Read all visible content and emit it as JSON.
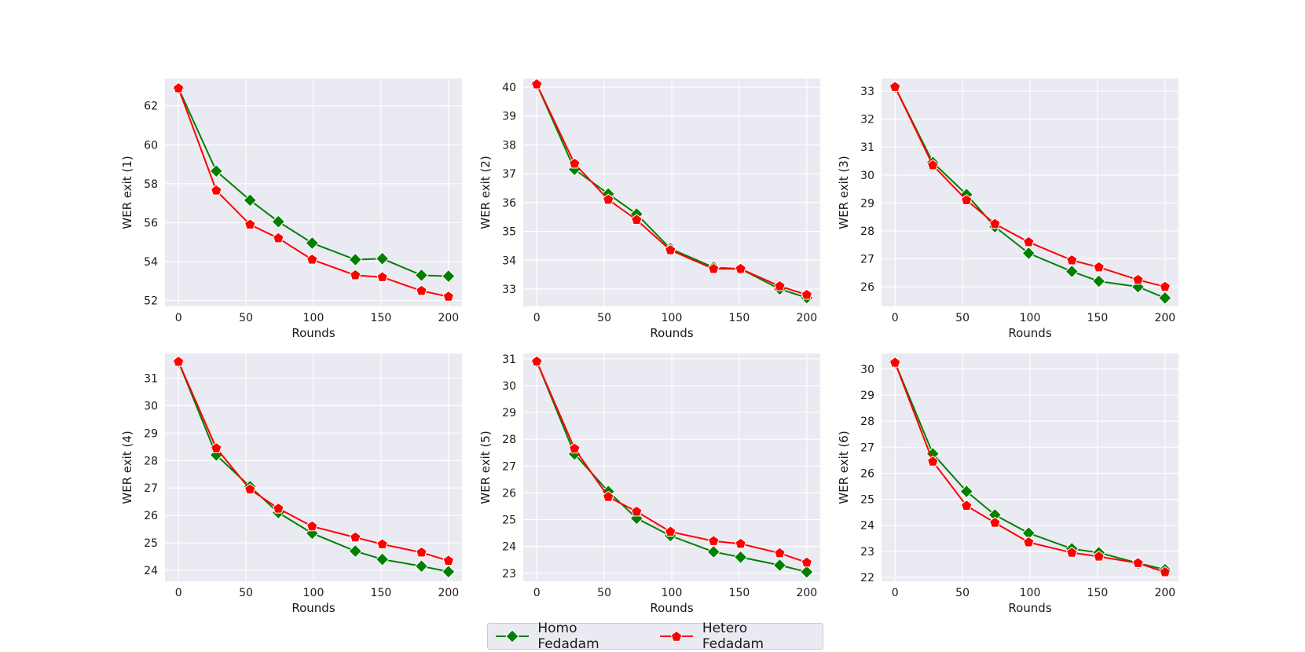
{
  "chart_data": [
    {
      "type": "line",
      "xlabel": "Rounds",
      "ylabel": "WER exit (1)",
      "xlim": [
        -10,
        210
      ],
      "ylim": [
        51.7,
        63.4
      ],
      "xticks": [
        0,
        50,
        100,
        150,
        200
      ],
      "yticks": [
        52,
        54,
        56,
        58,
        60,
        62
      ],
      "x": [
        0,
        28,
        53,
        74,
        99,
        131,
        151,
        180,
        200
      ],
      "series": [
        {
          "name": "Homo Fedadam",
          "values": [
            62.9,
            58.65,
            57.15,
            56.05,
            54.95,
            54.1,
            54.15,
            53.3,
            53.25
          ]
        },
        {
          "name": "Hetero Fedadam",
          "values": [
            62.9,
            57.65,
            55.9,
            55.2,
            54.1,
            53.3,
            53.2,
            52.5,
            52.2
          ]
        }
      ],
      "grid": true
    },
    {
      "type": "line",
      "xlabel": "Rounds",
      "ylabel": "WER exit (2)",
      "xlim": [
        -10,
        210
      ],
      "ylim": [
        32.4,
        40.3
      ],
      "xticks": [
        0,
        50,
        100,
        150,
        200
      ],
      "yticks": [
        33,
        34,
        35,
        36,
        37,
        38,
        39,
        40
      ],
      "x": [
        0,
        28,
        53,
        74,
        99,
        131,
        151,
        180,
        200
      ],
      "series": [
        {
          "name": "Homo Fedadam",
          "values": [
            40.1,
            37.15,
            36.3,
            35.6,
            34.4,
            33.75,
            33.7,
            33.0,
            32.7
          ]
        },
        {
          "name": "Hetero Fedadam",
          "values": [
            40.1,
            37.35,
            36.1,
            35.4,
            34.35,
            33.7,
            33.7,
            33.1,
            32.8
          ]
        }
      ],
      "grid": true
    },
    {
      "type": "line",
      "xlabel": "Rounds",
      "ylabel": "WER exit (3)",
      "xlim": [
        -10,
        210
      ],
      "ylim": [
        25.3,
        33.45
      ],
      "xticks": [
        0,
        50,
        100,
        150,
        200
      ],
      "yticks": [
        26,
        27,
        28,
        29,
        30,
        31,
        32,
        33
      ],
      "x": [
        0,
        28,
        53,
        74,
        99,
        131,
        151,
        180,
        200
      ],
      "series": [
        {
          "name": "Homo Fedadam",
          "values": [
            33.15,
            30.45,
            29.3,
            28.15,
            27.2,
            26.55,
            26.2,
            26.0,
            25.6
          ]
        },
        {
          "name": "Hetero Fedadam",
          "values": [
            33.15,
            30.35,
            29.1,
            28.25,
            27.6,
            26.95,
            26.7,
            26.25,
            26.0
          ]
        }
      ],
      "grid": true
    },
    {
      "type": "line",
      "xlabel": "Rounds",
      "ylabel": "WER exit (4)",
      "xlim": [
        -10,
        210
      ],
      "ylim": [
        23.6,
        31.9
      ],
      "xticks": [
        0,
        50,
        100,
        150,
        200
      ],
      "yticks": [
        24,
        25,
        26,
        27,
        28,
        29,
        30,
        31
      ],
      "x": [
        0,
        28,
        53,
        74,
        99,
        131,
        151,
        180,
        200
      ],
      "series": [
        {
          "name": "Homo Fedadam",
          "values": [
            31.6,
            28.2,
            27.05,
            26.1,
            25.35,
            24.7,
            24.4,
            24.15,
            23.95
          ]
        },
        {
          "name": "Hetero Fedadam",
          "values": [
            31.6,
            28.45,
            26.95,
            26.25,
            25.6,
            25.2,
            24.95,
            24.65,
            24.35
          ]
        }
      ],
      "grid": true
    },
    {
      "type": "line",
      "xlabel": "Rounds",
      "ylabel": "WER exit (5)",
      "xlim": [
        -10,
        210
      ],
      "ylim": [
        22.7,
        31.2
      ],
      "xticks": [
        0,
        50,
        100,
        150,
        200
      ],
      "yticks": [
        23,
        24,
        25,
        26,
        27,
        28,
        29,
        30,
        31
      ],
      "x": [
        0,
        28,
        53,
        74,
        99,
        131,
        151,
        180,
        200
      ],
      "series": [
        {
          "name": "Homo Fedadam",
          "values": [
            30.9,
            27.45,
            26.05,
            25.05,
            24.4,
            23.8,
            23.6,
            23.3,
            23.05
          ]
        },
        {
          "name": "Hetero Fedadam",
          "values": [
            30.9,
            27.65,
            25.85,
            25.3,
            24.55,
            24.2,
            24.1,
            23.75,
            23.4
          ]
        }
      ],
      "grid": true
    },
    {
      "type": "line",
      "xlabel": "Rounds",
      "ylabel": "WER exit (6)",
      "xlim": [
        -10,
        210
      ],
      "ylim": [
        21.85,
        30.6
      ],
      "xticks": [
        0,
        50,
        100,
        150,
        200
      ],
      "yticks": [
        22,
        23,
        24,
        25,
        26,
        27,
        28,
        29,
        30
      ],
      "x": [
        0,
        28,
        53,
        74,
        99,
        131,
        151,
        180,
        200
      ],
      "series": [
        {
          "name": "Homo Fedadam",
          "values": [
            30.25,
            26.75,
            25.3,
            24.4,
            23.7,
            23.1,
            22.95,
            22.55,
            22.3
          ]
        },
        {
          "name": "Hetero Fedadam",
          "values": [
            30.25,
            26.45,
            24.75,
            24.1,
            23.35,
            22.95,
            22.8,
            22.55,
            22.2
          ]
        }
      ],
      "grid": true
    }
  ],
  "legend": {
    "items": [
      {
        "label": "Homo Fedadam",
        "color": "#008000",
        "marker": "diamond"
      },
      {
        "label": "Hetero Fedadam",
        "color": "#ff0000",
        "marker": "pentagon"
      }
    ]
  },
  "style": {
    "background": "#eaeaf2",
    "grid_color": "#ffffff"
  }
}
